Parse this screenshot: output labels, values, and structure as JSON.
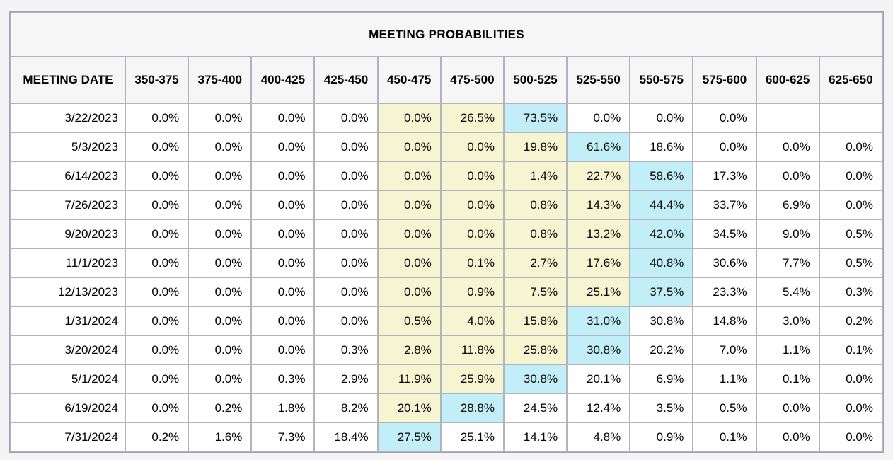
{
  "title": "MEETING PROBABILITIES",
  "colors": {
    "page_bg": "#F4F4F6",
    "grid": "#B1B4BD",
    "border": "#9FA2AC",
    "header_bg": "#F6F6F7",
    "cell_bg": "#FFFFFF",
    "highlight_yellow": "#F5F5D1",
    "highlight_cyan": "#C2EFF7",
    "text": "#000000"
  },
  "table": {
    "columns": [
      "MEETING DATE",
      "350-375",
      "375-400",
      "400-425",
      "425-450",
      "450-475",
      "475-500",
      "500-525",
      "525-550",
      "550-575",
      "575-600",
      "600-625",
      "625-650"
    ],
    "rows": [
      {
        "date": "3/22/2023",
        "values": [
          "0.0%",
          "0.0%",
          "0.0%",
          "0.0%",
          "0.0%",
          "26.5%",
          "73.5%",
          "0.0%",
          "0.0%",
          "0.0%",
          "",
          ""
        ],
        "highlights": [
          "",
          "",
          "",
          "",
          "yellow",
          "yellow",
          "cyan",
          "",
          "",
          "",
          "",
          ""
        ]
      },
      {
        "date": "5/3/2023",
        "values": [
          "0.0%",
          "0.0%",
          "0.0%",
          "0.0%",
          "0.0%",
          "0.0%",
          "19.8%",
          "61.6%",
          "18.6%",
          "0.0%",
          "0.0%",
          "0.0%"
        ],
        "highlights": [
          "",
          "",
          "",
          "",
          "yellow",
          "yellow",
          "yellow",
          "cyan",
          "",
          "",
          "",
          ""
        ]
      },
      {
        "date": "6/14/2023",
        "values": [
          "0.0%",
          "0.0%",
          "0.0%",
          "0.0%",
          "0.0%",
          "0.0%",
          "1.4%",
          "22.7%",
          "58.6%",
          "17.3%",
          "0.0%",
          "0.0%"
        ],
        "highlights": [
          "",
          "",
          "",
          "",
          "yellow",
          "yellow",
          "yellow",
          "yellow",
          "cyan",
          "",
          "",
          ""
        ]
      },
      {
        "date": "7/26/2023",
        "values": [
          "0.0%",
          "0.0%",
          "0.0%",
          "0.0%",
          "0.0%",
          "0.0%",
          "0.8%",
          "14.3%",
          "44.4%",
          "33.7%",
          "6.9%",
          "0.0%"
        ],
        "highlights": [
          "",
          "",
          "",
          "",
          "yellow",
          "yellow",
          "yellow",
          "yellow",
          "cyan",
          "",
          "",
          ""
        ]
      },
      {
        "date": "9/20/2023",
        "values": [
          "0.0%",
          "0.0%",
          "0.0%",
          "0.0%",
          "0.0%",
          "0.0%",
          "0.8%",
          "13.2%",
          "42.0%",
          "34.5%",
          "9.0%",
          "0.5%"
        ],
        "highlights": [
          "",
          "",
          "",
          "",
          "yellow",
          "yellow",
          "yellow",
          "yellow",
          "cyan",
          "",
          "",
          ""
        ]
      },
      {
        "date": "11/1/2023",
        "values": [
          "0.0%",
          "0.0%",
          "0.0%",
          "0.0%",
          "0.0%",
          "0.1%",
          "2.7%",
          "17.6%",
          "40.8%",
          "30.6%",
          "7.7%",
          "0.5%"
        ],
        "highlights": [
          "",
          "",
          "",
          "",
          "yellow",
          "yellow",
          "yellow",
          "yellow",
          "cyan",
          "",
          "",
          ""
        ]
      },
      {
        "date": "12/13/2023",
        "values": [
          "0.0%",
          "0.0%",
          "0.0%",
          "0.0%",
          "0.0%",
          "0.9%",
          "7.5%",
          "25.1%",
          "37.5%",
          "23.3%",
          "5.4%",
          "0.3%"
        ],
        "highlights": [
          "",
          "",
          "",
          "",
          "yellow",
          "yellow",
          "yellow",
          "yellow",
          "cyan",
          "",
          "",
          ""
        ]
      },
      {
        "date": "1/31/2024",
        "values": [
          "0.0%",
          "0.0%",
          "0.0%",
          "0.0%",
          "0.5%",
          "4.0%",
          "15.8%",
          "31.0%",
          "30.8%",
          "14.8%",
          "3.0%",
          "0.2%"
        ],
        "highlights": [
          "",
          "",
          "",
          "",
          "yellow",
          "yellow",
          "yellow",
          "cyan",
          "",
          "",
          "",
          ""
        ]
      },
      {
        "date": "3/20/2024",
        "values": [
          "0.0%",
          "0.0%",
          "0.0%",
          "0.3%",
          "2.8%",
          "11.8%",
          "25.8%",
          "30.8%",
          "20.2%",
          "7.0%",
          "1.1%",
          "0.1%"
        ],
        "highlights": [
          "",
          "",
          "",
          "",
          "yellow",
          "yellow",
          "yellow",
          "cyan",
          "",
          "",
          "",
          ""
        ]
      },
      {
        "date": "5/1/2024",
        "values": [
          "0.0%",
          "0.0%",
          "0.3%",
          "2.9%",
          "11.9%",
          "25.9%",
          "30.8%",
          "20.1%",
          "6.9%",
          "1.1%",
          "0.1%",
          "0.0%"
        ],
        "highlights": [
          "",
          "",
          "",
          "",
          "yellow",
          "yellow",
          "cyan",
          "",
          "",
          "",
          "",
          ""
        ]
      },
      {
        "date": "6/19/2024",
        "values": [
          "0.0%",
          "0.2%",
          "1.8%",
          "8.2%",
          "20.1%",
          "28.8%",
          "24.5%",
          "12.4%",
          "3.5%",
          "0.5%",
          "0.0%",
          "0.0%"
        ],
        "highlights": [
          "",
          "",
          "",
          "",
          "yellow",
          "cyan",
          "",
          "",
          "",
          "",
          "",
          ""
        ]
      },
      {
        "date": "7/31/2024",
        "values": [
          "0.2%",
          "1.6%",
          "7.3%",
          "18.4%",
          "27.5%",
          "25.1%",
          "14.1%",
          "4.8%",
          "0.9%",
          "0.1%",
          "0.0%",
          "0.0%"
        ],
        "highlights": [
          "",
          "",
          "",
          "",
          "cyan",
          "",
          "",
          "",
          "",
          "",
          "",
          ""
        ]
      }
    ]
  }
}
